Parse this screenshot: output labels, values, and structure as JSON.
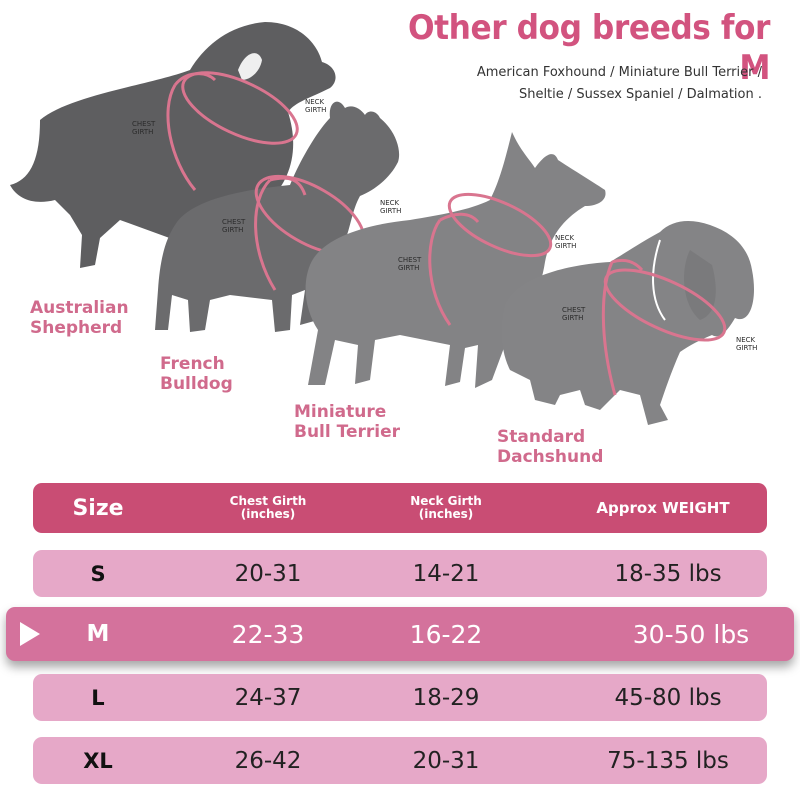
{
  "header": {
    "title": "Other dog breeds for M",
    "subtitle_line1": "American Foxhound / Miniature Bull Terrier /",
    "subtitle_line2": "Sheltie / Sussex Spaniel / Dalmation ."
  },
  "dogs": [
    {
      "name_line1": "Australian",
      "name_line2": "Shepherd",
      "chest": [
        "CHEST",
        "GIRTH"
      ],
      "neck": [
        "NECK",
        "GIRTH"
      ]
    },
    {
      "name_line1": "French",
      "name_line2": "Bulldog",
      "chest": [
        "CHEST",
        "GIRTH"
      ],
      "neck": [
        "NECK",
        "GIRTH"
      ]
    },
    {
      "name_line1": "Miniature",
      "name_line2": "Bull Terrier",
      "chest": [
        "CHEST",
        "GIRTH"
      ],
      "neck": [
        "NECK",
        "GIRTH"
      ]
    },
    {
      "name_line1": "Standard",
      "name_line2": "Dachshund",
      "chest": [
        "CHEST",
        "GIRTH"
      ],
      "neck": [
        "NECK",
        "GIRTH"
      ]
    }
  ],
  "table": {
    "headers": {
      "size": "Size",
      "chest_line1": "Chest Girth",
      "chest_line2": "(inches)",
      "neck_line1": "Neck Girth",
      "neck_line2": "(inches)",
      "weight": "Approx WEIGHT"
    },
    "rows": [
      {
        "size": "S",
        "chest": "20-31",
        "neck": "14-21",
        "weight": "18-35 lbs"
      },
      {
        "size": "M",
        "chest": "22-33",
        "neck": "16-22",
        "weight": "30-50 lbs",
        "highlighted": true
      },
      {
        "size": "L",
        "chest": "24-37",
        "neck": "18-29",
        "weight": "45-80 lbs"
      },
      {
        "size": "XL",
        "chest": "26-42",
        "neck": "20-31",
        "weight": "75-135 lbs"
      }
    ]
  },
  "colors": {
    "title": "#d2537f",
    "header_row": "#c94d74",
    "data_row": "#e6a8c8",
    "active_row": "#d4729c",
    "harness_line": "#d9758f"
  },
  "icons": {
    "active_marker": "play-arrow-icon"
  }
}
